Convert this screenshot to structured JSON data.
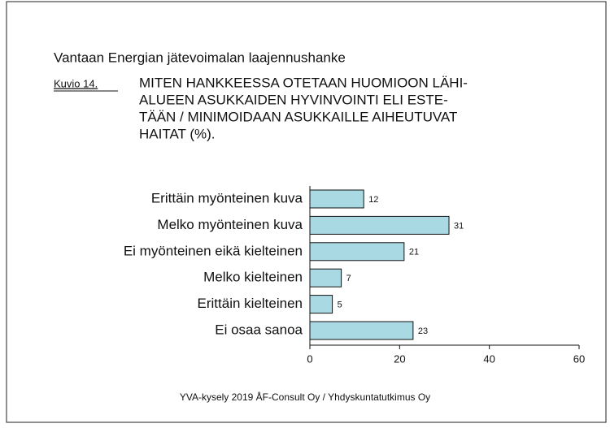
{
  "chart_data": {
    "type": "barh",
    "header": "Vantaan Energian jätevoimalan laajennushanke",
    "figure_label": "Kuvio 14.",
    "title_lines": [
      "MITEN HANKKEESSA OTETAAN HUOMIOON LÄHI-",
      "ALUEEN ASUKKAIDEN HYVINVOINTI ELI ESTE-",
      "TÄÄN / MINIMOIDAAN ASUKKAILLE AIHEUTUVAT",
      "HAITAT (%)."
    ],
    "categories": [
      "Erittäin myönteinen kuva",
      "Melko myönteinen kuva",
      "Ei myönteinen eikä kielteinen",
      "Melko kielteinen",
      "Erittäin kielteinen",
      "Ei osaa sanoa"
    ],
    "values": [
      12,
      31,
      21,
      7,
      5,
      23
    ],
    "color": "#a9d9e3",
    "xlim": [
      0,
      60
    ],
    "xticks": [
      0,
      20,
      40,
      60
    ],
    "source": "YVA-kysely 2019 ÅF-Consult Oy / Yhdyskuntatutkimus Oy"
  }
}
